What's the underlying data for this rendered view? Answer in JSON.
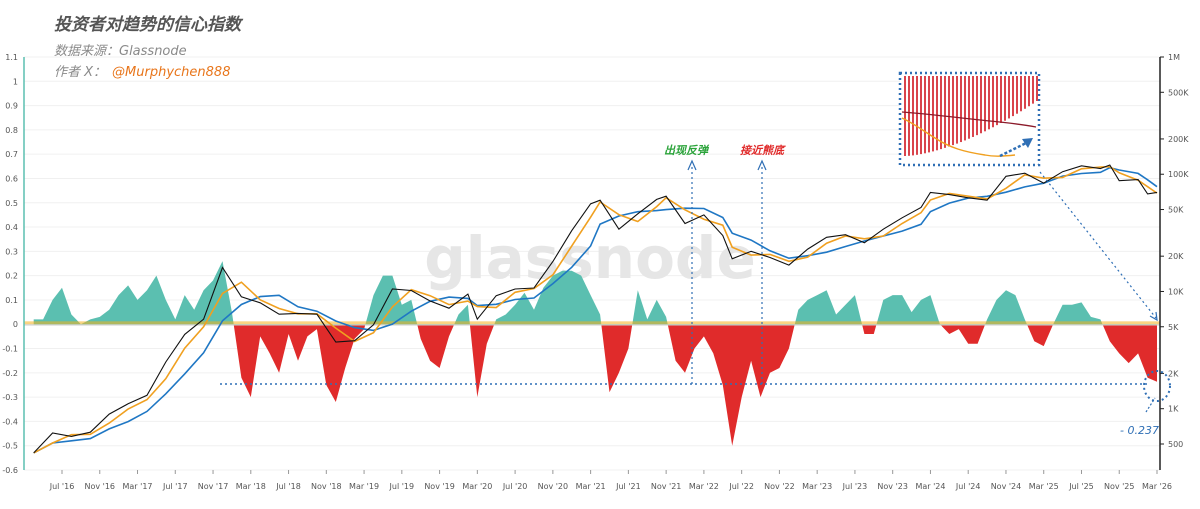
{
  "header": {
    "title": "投资者对趋势的信心指数",
    "source": "数据来源：Glassnode",
    "author_prefix": "作者 X：",
    "author_handle": "@Murphychen888"
  },
  "watermark": "glassnode",
  "annotations": {
    "rebound": "出现反弹",
    "near_bottom": "接近熊底",
    "current_value": "- 0.237"
  },
  "colors": {
    "positive_area": "#5bbfb0",
    "negative_area": "#e02b2b",
    "neutral_area": "#f5b21c",
    "price": "#111111",
    "short_ma": "#f0a020",
    "long_ma": "#1f77c4",
    "annotation_blue": "#2f6fb5",
    "rebound_text": "#2ba33a",
    "bottom_text": "#e02b2b"
  },
  "chart_data": {
    "type": "area",
    "title": "投资者对趋势的信心指数",
    "left_axis": {
      "ylim": [
        -0.6,
        1.1
      ],
      "ticks": [
        "1.1",
        "1",
        "0.9",
        "0.8",
        "0.7",
        "0.6",
        "0.5",
        "0.4",
        "0.3",
        "0.2",
        "0.1",
        "0",
        "-0.1",
        "-0.2",
        "-0.3",
        "-0.4",
        "-0.5",
        "-0.6"
      ]
    },
    "right_axis": {
      "scale": "log",
      "ylim": [
        300,
        1000000
      ],
      "ticks": [
        {
          "label": "1M",
          "value": 1000000
        },
        {
          "label": "500K",
          "value": 500000
        },
        {
          "label": "200K",
          "value": 200000
        },
        {
          "label": "100K",
          "value": 100000
        },
        {
          "label": "50K",
          "value": 50000
        },
        {
          "label": "20K",
          "value": 20000
        },
        {
          "label": "10K",
          "value": 10000
        },
        {
          "label": "5K",
          "value": 5000
        },
        {
          "label": "2K",
          "value": 2000
        },
        {
          "label": "1K",
          "value": 1000
        },
        {
          "label": "500",
          "value": 500
        }
      ]
    },
    "x_ticks": [
      "Jul '16",
      "Nov '16",
      "Mar '17",
      "Jul '17",
      "Nov '17",
      "Mar '18",
      "Jul '18",
      "Nov '18",
      "Mar '19",
      "Jul '19",
      "Nov '19",
      "Mar '20",
      "Jul '20",
      "Nov '20",
      "Mar '21",
      "Jul '21",
      "Nov '21",
      "Mar '22",
      "Jul '22",
      "Nov '22",
      "Mar '23",
      "Jul '23",
      "Nov '23",
      "Mar '24",
      "Jul '24",
      "Nov '24",
      "Mar '25",
      "Jul '25",
      "Nov '25",
      "Mar '26"
    ],
    "reference_value": -0.237,
    "confidence_index": [
      [
        "2016-04",
        0.02
      ],
      [
        "2016-05",
        0.02
      ],
      [
        "2016-06",
        0.1
      ],
      [
        "2016-07",
        0.15
      ],
      [
        "2016-08",
        0.04
      ],
      [
        "2016-09",
        0.0
      ],
      [
        "2016-10",
        0.02
      ],
      [
        "2016-11",
        0.03
      ],
      [
        "2016-12",
        0.06
      ],
      [
        "2017-01",
        0.12
      ],
      [
        "2017-02",
        0.16
      ],
      [
        "2017-03",
        0.1
      ],
      [
        "2017-04",
        0.14
      ],
      [
        "2017-05",
        0.2
      ],
      [
        "2017-06",
        0.1
      ],
      [
        "2017-07",
        0.02
      ],
      [
        "2017-08",
        0.12
      ],
      [
        "2017-09",
        0.06
      ],
      [
        "2017-10",
        0.14
      ],
      [
        "2017-11",
        0.18
      ],
      [
        "2017-12",
        0.26
      ],
      [
        "2018-01",
        0.05
      ],
      [
        "2018-02",
        -0.22
      ],
      [
        "2018-03",
        -0.3
      ],
      [
        "2018-04",
        -0.05
      ],
      [
        "2018-05",
        -0.12
      ],
      [
        "2018-06",
        -0.2
      ],
      [
        "2018-07",
        -0.04
      ],
      [
        "2018-08",
        -0.15
      ],
      [
        "2018-09",
        -0.05
      ],
      [
        "2018-10",
        -0.02
      ],
      [
        "2018-11",
        -0.25
      ],
      [
        "2018-12",
        -0.32
      ],
      [
        "2019-01",
        -0.18
      ],
      [
        "2019-02",
        -0.06
      ],
      [
        "2019-03",
        -0.02
      ],
      [
        "2019-04",
        0.12
      ],
      [
        "2019-05",
        0.2
      ],
      [
        "2019-06",
        0.2
      ],
      [
        "2019-07",
        0.08
      ],
      [
        "2019-08",
        0.1
      ],
      [
        "2019-09",
        -0.06
      ],
      [
        "2019-10",
        -0.15
      ],
      [
        "2019-11",
        -0.18
      ],
      [
        "2019-12",
        -0.05
      ],
      [
        "2020-01",
        0.04
      ],
      [
        "2020-02",
        0.08
      ],
      [
        "2020-03",
        -0.3
      ],
      [
        "2020-04",
        -0.08
      ],
      [
        "2020-05",
        0.02
      ],
      [
        "2020-06",
        0.04
      ],
      [
        "2020-07",
        0.08
      ],
      [
        "2020-08",
        0.13
      ],
      [
        "2020-09",
        0.06
      ],
      [
        "2020-10",
        0.15
      ],
      [
        "2020-11",
        0.2
      ],
      [
        "2020-12",
        0.22
      ],
      [
        "2021-01",
        0.22
      ],
      [
        "2021-02",
        0.2
      ],
      [
        "2021-03",
        0.12
      ],
      [
        "2021-04",
        0.04
      ],
      [
        "2021-05",
        -0.28
      ],
      [
        "2021-06",
        -0.2
      ],
      [
        "2021-07",
        -0.1
      ],
      [
        "2021-08",
        0.14
      ],
      [
        "2021-09",
        0.02
      ],
      [
        "2021-10",
        0.1
      ],
      [
        "2021-11",
        0.03
      ],
      [
        "2021-12",
        -0.15
      ],
      [
        "2022-01",
        -0.2
      ],
      [
        "2022-02",
        -0.1
      ],
      [
        "2022-03",
        -0.05
      ],
      [
        "2022-04",
        -0.12
      ],
      [
        "2022-05",
        -0.25
      ],
      [
        "2022-06",
        -0.5
      ],
      [
        "2022-07",
        -0.3
      ],
      [
        "2022-08",
        -0.15
      ],
      [
        "2022-09",
        -0.3
      ],
      [
        "2022-10",
        -0.2
      ],
      [
        "2022-11",
        -0.18
      ],
      [
        "2022-12",
        -0.1
      ],
      [
        "2023-01",
        0.06
      ],
      [
        "2023-02",
        0.1
      ],
      [
        "2023-03",
        0.12
      ],
      [
        "2023-04",
        0.14
      ],
      [
        "2023-05",
        0.04
      ],
      [
        "2023-06",
        0.08
      ],
      [
        "2023-07",
        0.12
      ],
      [
        "2023-08",
        -0.04
      ],
      [
        "2023-09",
        -0.04
      ],
      [
        "2023-10",
        0.1
      ],
      [
        "2023-11",
        0.12
      ],
      [
        "2023-12",
        0.12
      ],
      [
        "2024-01",
        0.05
      ],
      [
        "2024-02",
        0.1
      ],
      [
        "2024-03",
        0.12
      ],
      [
        "2024-04",
        0.0
      ],
      [
        "2024-05",
        -0.04
      ],
      [
        "2024-06",
        -0.02
      ],
      [
        "2024-07",
        -0.08
      ],
      [
        "2024-08",
        -0.08
      ],
      [
        "2024-09",
        0.02
      ],
      [
        "2024-10",
        0.1
      ],
      [
        "2024-11",
        0.14
      ],
      [
        "2024-12",
        0.12
      ],
      [
        "2025-01",
        0.02
      ],
      [
        "2025-02",
        -0.07
      ],
      [
        "2025-03",
        -0.09
      ],
      [
        "2025-04",
        0.0
      ],
      [
        "2025-05",
        0.08
      ],
      [
        "2025-06",
        0.08
      ],
      [
        "2025-07",
        0.09
      ],
      [
        "2025-08",
        0.03
      ],
      [
        "2025-09",
        0.02
      ],
      [
        "2025-10",
        -0.07
      ],
      [
        "2025-11",
        -0.12
      ],
      [
        "2025-12",
        -0.16
      ],
      [
        "2026-01",
        -0.12
      ],
      [
        "2026-02",
        -0.22
      ],
      [
        "2026-03",
        -0.237
      ]
    ],
    "price": [
      [
        "2016-04",
        420
      ],
      [
        "2016-06",
        620
      ],
      [
        "2016-08",
        580
      ],
      [
        "2016-10",
        630
      ],
      [
        "2016-12",
        900
      ],
      [
        "2017-02",
        1100
      ],
      [
        "2017-04",
        1300
      ],
      [
        "2017-06",
        2500
      ],
      [
        "2017-08",
        4300
      ],
      [
        "2017-10",
        5800
      ],
      [
        "2017-12",
        16000
      ],
      [
        "2018-02",
        9000
      ],
      [
        "2018-04",
        8000
      ],
      [
        "2018-06",
        6400
      ],
      [
        "2018-08",
        6500
      ],
      [
        "2018-10",
        6400
      ],
      [
        "2018-12",
        3700
      ],
      [
        "2019-02",
        3800
      ],
      [
        "2019-04",
        5200
      ],
      [
        "2019-06",
        10500
      ],
      [
        "2019-08",
        10200
      ],
      [
        "2019-10",
        8300
      ],
      [
        "2019-12",
        7200
      ],
      [
        "2020-02",
        9500
      ],
      [
        "2020-03",
        5800
      ],
      [
        "2020-05",
        9200
      ],
      [
        "2020-07",
        10500
      ],
      [
        "2020-09",
        10700
      ],
      [
        "2020-11",
        18000
      ],
      [
        "2021-01",
        33000
      ],
      [
        "2021-03",
        56000
      ],
      [
        "2021-04",
        60000
      ],
      [
        "2021-06",
        34000
      ],
      [
        "2021-08",
        46000
      ],
      [
        "2021-10",
        61000
      ],
      [
        "2021-11",
        65000
      ],
      [
        "2022-01",
        38000
      ],
      [
        "2022-03",
        45000
      ],
      [
        "2022-05",
        30000
      ],
      [
        "2022-06",
        19000
      ],
      [
        "2022-08",
        22000
      ],
      [
        "2022-10",
        19500
      ],
      [
        "2022-12",
        16800
      ],
      [
        "2023-02",
        23000
      ],
      [
        "2023-04",
        29000
      ],
      [
        "2023-06",
        30500
      ],
      [
        "2023-08",
        26000
      ],
      [
        "2023-10",
        34000
      ],
      [
        "2023-12",
        42500
      ],
      [
        "2024-02",
        52000
      ],
      [
        "2024-03",
        70000
      ],
      [
        "2024-05",
        67000
      ],
      [
        "2024-07",
        63000
      ],
      [
        "2024-09",
        60000
      ],
      [
        "2024-11",
        96000
      ],
      [
        "2025-01",
        102000
      ],
      [
        "2025-03",
        84000
      ],
      [
        "2025-05",
        105000
      ],
      [
        "2025-07",
        118000
      ],
      [
        "2025-09",
        112000
      ],
      [
        "2025-10",
        120000
      ],
      [
        "2025-11",
        88000
      ],
      [
        "2026-01",
        90000
      ],
      [
        "2026-02",
        68000
      ],
      [
        "2026-03",
        70000
      ]
    ]
  }
}
